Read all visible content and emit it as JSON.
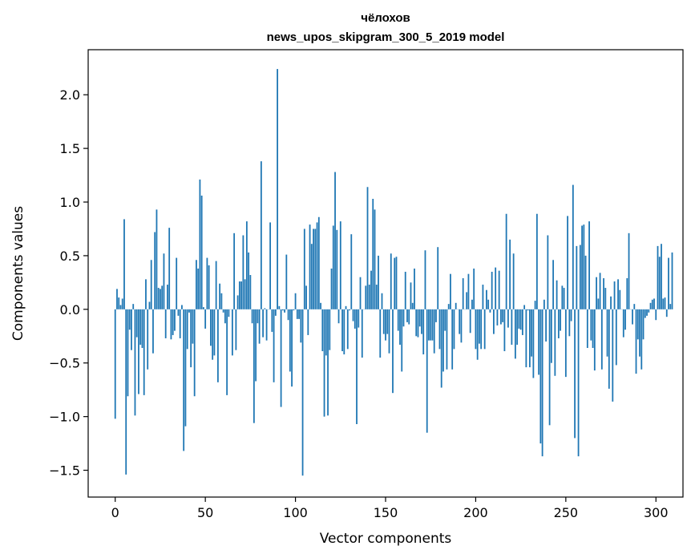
{
  "chart_data": {
    "type": "bar",
    "title_line1": "чёлохов",
    "title_line2": "news_upos_skipgram_300_5_2019 model",
    "xlabel": "Vector components",
    "ylabel": "Components values",
    "xlim": [
      -15,
      315
    ],
    "ylim": [
      -1.75,
      2.42
    ],
    "xticks": [
      0,
      50,
      100,
      150,
      200,
      250,
      300
    ],
    "xtick_labels": [
      "0",
      "50",
      "100",
      "150",
      "200",
      "250",
      "300"
    ],
    "yticks": [
      -1.5,
      -1.0,
      -0.5,
      0.0,
      0.5,
      1.0,
      1.5,
      2.0
    ],
    "ytick_labels": [
      "−1.5",
      "−1.0",
      "−0.5",
      "0.0",
      "0.5",
      "1.0",
      "1.5",
      "2.0"
    ],
    "bar_color": "#1f77b4",
    "values": [
      -1.02,
      0.19,
      0.11,
      0.04,
      0.1,
      0.84,
      -1.54,
      -0.81,
      -0.19,
      -0.38,
      0.05,
      -0.99,
      -0.26,
      -0.79,
      -0.33,
      -0.36,
      -0.8,
      0.28,
      -0.56,
      0.07,
      0.46,
      -0.41,
      0.72,
      0.93,
      0.2,
      0.19,
      0.22,
      0.52,
      -0.27,
      0.23,
      0.76,
      -0.28,
      -0.24,
      -0.2,
      0.48,
      -0.06,
      -0.27,
      0.04,
      -1.32,
      -1.09,
      -0.37,
      -0.03,
      -0.54,
      -0.32,
      -0.81,
      0.46,
      0.38,
      1.21,
      1.06,
      0.02,
      -0.18,
      0.48,
      0.41,
      -0.34,
      -0.47,
      -0.43,
      0.45,
      -0.68,
      0.24,
      0.15,
      -0.03,
      -0.13,
      -0.8,
      -0.07,
      0.0,
      -0.43,
      0.71,
      -0.38,
      0.13,
      0.26,
      0.26,
      0.69,
      0.28,
      0.82,
      0.53,
      0.32,
      -0.13,
      -1.06,
      -0.67,
      -0.13,
      -0.32,
      1.38,
      -0.26,
      0.01,
      -0.29,
      0.0,
      0.81,
      -0.21,
      -0.68,
      -0.06,
      2.24,
      0.03,
      -0.91,
      -0.01,
      -0.03,
      0.51,
      -0.1,
      -0.58,
      -0.72,
      -0.01,
      0.15,
      -0.09,
      -0.09,
      -0.31,
      -1.55,
      0.75,
      0.22,
      -0.24,
      0.79,
      0.61,
      0.75,
      0.75,
      0.81,
      0.86,
      0.06,
      -0.39,
      -1.0,
      -0.43,
      -0.99,
      -0.38,
      0.38,
      0.78,
      1.28,
      0.74,
      -0.13,
      0.82,
      -0.39,
      -0.42,
      0.03,
      -0.37,
      -0.01,
      0.7,
      -0.11,
      -0.18,
      -1.07,
      -0.17,
      0.3,
      -0.45,
      0.0,
      0.22,
      1.14,
      0.23,
      0.36,
      1.03,
      0.93,
      0.23,
      0.5,
      -0.45,
      0.15,
      -0.23,
      -0.29,
      -0.23,
      -0.41,
      0.52,
      -0.78,
      0.48,
      0.49,
      -0.2,
      -0.33,
      -0.58,
      -0.16,
      0.35,
      -0.12,
      -0.14,
      0.25,
      0.06,
      0.38,
      -0.25,
      -0.26,
      -0.16,
      -0.23,
      -0.42,
      0.55,
      -1.15,
      -0.29,
      -0.29,
      -0.29,
      -0.41,
      -0.12,
      0.58,
      -0.37,
      -0.73,
      -0.58,
      -0.2,
      -0.56,
      0.05,
      0.33,
      -0.56,
      -0.37,
      0.06,
      0.0,
      -0.23,
      -0.31,
      0.29,
      0.0,
      0.16,
      0.33,
      -0.22,
      0.09,
      0.38,
      -0.37,
      -0.47,
      -0.32,
      -0.37,
      0.23,
      -0.37,
      0.18,
      0.09,
      -0.03,
      0.35,
      -0.23,
      0.39,
      -0.15,
      0.36,
      -0.14,
      -0.12,
      -0.39,
      0.89,
      -0.17,
      0.65,
      -0.33,
      0.52,
      -0.46,
      -0.33,
      -0.18,
      -0.19,
      -0.24,
      0.04,
      -0.54,
      -0.01,
      -0.54,
      -0.44,
      -0.64,
      0.08,
      0.89,
      -0.61,
      -1.25,
      -1.37,
      0.09,
      -0.3,
      0.69,
      -1.08,
      -0.5,
      0.46,
      -0.62,
      0.27,
      -0.27,
      -0.2,
      0.22,
      0.2,
      -0.63,
      0.87,
      -0.25,
      -0.11,
      1.16,
      -1.2,
      0.59,
      -1.37,
      0.6,
      0.78,
      0.79,
      0.5,
      -0.36,
      0.82,
      -0.29,
      -0.36,
      -0.57,
      0.3,
      0.1,
      0.34,
      -0.56,
      0.29,
      0.2,
      -0.44,
      -0.74,
      0.12,
      -0.86,
      0.26,
      -0.52,
      0.28,
      0.18,
      0.0,
      -0.26,
      -0.19,
      0.29,
      0.71,
      0.0,
      -0.14,
      0.05,
      -0.6,
      -0.28,
      -0.44,
      -0.56,
      -0.28,
      -0.08,
      -0.06,
      -0.03,
      0.06,
      0.09,
      0.1,
      -0.1,
      0.59,
      0.49,
      0.61,
      0.1,
      0.11,
      -0.07,
      0.48,
      0.05,
      0.53
    ]
  }
}
